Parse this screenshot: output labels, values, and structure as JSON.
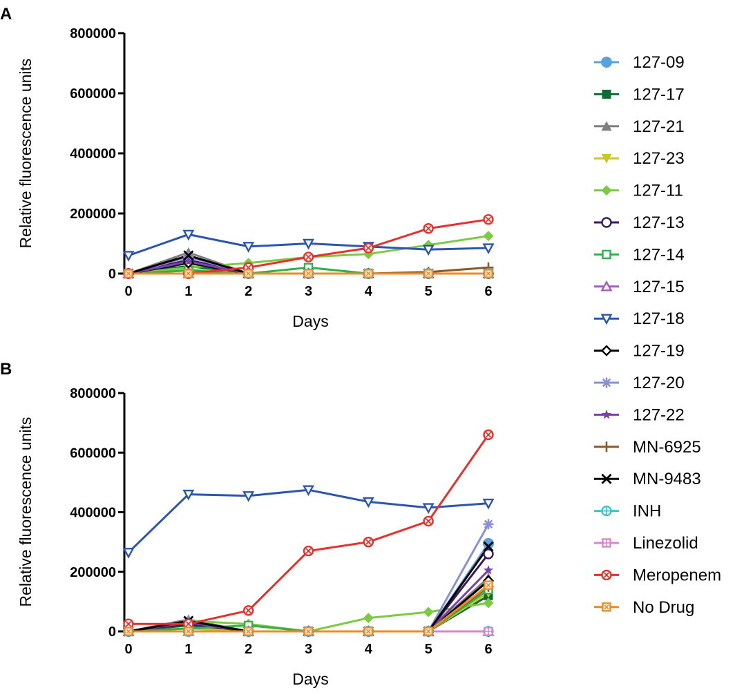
{
  "chart_data": [
    {
      "panel": "A",
      "type": "line",
      "xlabel": "Days",
      "ylabel": "Relative fluorescence units",
      "x": [
        0,
        1,
        2,
        3,
        4,
        5,
        6
      ],
      "ylim": [
        0,
        800000
      ],
      "yticks": [
        "0",
        "200000",
        "400000",
        "600000",
        "800000"
      ],
      "xticks": [
        "0",
        "1",
        "2",
        "3",
        "4",
        "5",
        "6"
      ],
      "series": [
        {
          "name": "127-09",
          "values": [
            0,
            0,
            0,
            0,
            0,
            0,
            0
          ]
        },
        {
          "name": "127-17",
          "values": [
            0,
            25000,
            0,
            0,
            0,
            0,
            0
          ]
        },
        {
          "name": "127-21",
          "values": [
            0,
            70000,
            0,
            0,
            0,
            0,
            0
          ]
        },
        {
          "name": "127-23",
          "values": [
            0,
            15000,
            0,
            0,
            0,
            0,
            0
          ]
        },
        {
          "name": "127-11",
          "values": [
            0,
            20000,
            35000,
            55000,
            65000,
            95000,
            125000
          ]
        },
        {
          "name": "127-13",
          "values": [
            0,
            45000,
            0,
            0,
            0,
            0,
            0
          ]
        },
        {
          "name": "127-14",
          "values": [
            0,
            10000,
            0,
            20000,
            0,
            0,
            0
          ]
        },
        {
          "name": "127-15",
          "values": [
            0,
            0,
            0,
            0,
            0,
            0,
            0
          ]
        },
        {
          "name": "127-18",
          "values": [
            60000,
            130000,
            90000,
            100000,
            90000,
            80000,
            85000
          ]
        },
        {
          "name": "127-19",
          "values": [
            0,
            35000,
            0,
            0,
            0,
            0,
            0
          ]
        },
        {
          "name": "127-20",
          "values": [
            0,
            55000,
            0,
            0,
            0,
            0,
            0
          ]
        },
        {
          "name": "127-22",
          "values": [
            0,
            40000,
            0,
            0,
            0,
            0,
            0
          ]
        },
        {
          "name": "MN-6925",
          "values": [
            0,
            0,
            0,
            0,
            0,
            5000,
            20000
          ]
        },
        {
          "name": "MN-9483",
          "values": [
            0,
            60000,
            0,
            0,
            0,
            0,
            0
          ]
        },
        {
          "name": "INH",
          "values": [
            0,
            0,
            0,
            0,
            0,
            0,
            0
          ]
        },
        {
          "name": "Linezolid",
          "values": [
            0,
            0,
            0,
            0,
            0,
            0,
            0
          ]
        },
        {
          "name": "Meropenem",
          "values": [
            0,
            0,
            20000,
            55000,
            85000,
            150000,
            180000
          ]
        },
        {
          "name": "No Drug",
          "values": [
            0,
            0,
            0,
            0,
            0,
            0,
            0
          ]
        }
      ]
    },
    {
      "panel": "B",
      "type": "line",
      "xlabel": "Days",
      "ylabel": "Relative fluorescence units",
      "x": [
        0,
        1,
        2,
        3,
        4,
        5,
        6
      ],
      "ylim": [
        0,
        800000
      ],
      "yticks": [
        "0",
        "200000",
        "400000",
        "600000",
        "800000"
      ],
      "xticks": [
        "0",
        "1",
        "2",
        "3",
        "4",
        "5",
        "6"
      ],
      "series": [
        {
          "name": "127-09",
          "values": [
            0,
            0,
            0,
            0,
            0,
            0,
            295000
          ]
        },
        {
          "name": "127-17",
          "values": [
            0,
            20000,
            0,
            0,
            0,
            0,
            120000
          ]
        },
        {
          "name": "127-21",
          "values": [
            0,
            40000,
            0,
            0,
            0,
            0,
            180000
          ]
        },
        {
          "name": "127-23",
          "values": [
            0,
            10000,
            0,
            0,
            0,
            0,
            130000
          ]
        },
        {
          "name": "127-11",
          "values": [
            0,
            35000,
            25000,
            0,
            45000,
            65000,
            95000
          ]
        },
        {
          "name": "127-13",
          "values": [
            0,
            25000,
            0,
            0,
            0,
            0,
            260000
          ]
        },
        {
          "name": "127-14",
          "values": [
            0,
            10000,
            20000,
            0,
            0,
            0,
            140000
          ]
        },
        {
          "name": "127-15",
          "values": [
            0,
            0,
            0,
            0,
            0,
            0,
            0
          ]
        },
        {
          "name": "127-18",
          "values": [
            265000,
            460000,
            455000,
            475000,
            435000,
            415000,
            430000
          ]
        },
        {
          "name": "127-19",
          "values": [
            0,
            30000,
            0,
            0,
            0,
            0,
            170000
          ]
        },
        {
          "name": "127-20",
          "values": [
            0,
            35000,
            0,
            0,
            0,
            0,
            360000
          ]
        },
        {
          "name": "127-22",
          "values": [
            0,
            30000,
            0,
            0,
            0,
            0,
            205000
          ]
        },
        {
          "name": "MN-6925",
          "values": [
            0,
            0,
            0,
            0,
            0,
            0,
            150000
          ]
        },
        {
          "name": "MN-9483",
          "values": [
            0,
            35000,
            0,
            0,
            0,
            0,
            285000
          ]
        },
        {
          "name": "INH",
          "values": [
            0,
            0,
            0,
            0,
            0,
            0,
            0
          ]
        },
        {
          "name": "Linezolid",
          "values": [
            0,
            0,
            0,
            0,
            0,
            0,
            0
          ]
        },
        {
          "name": "Meropenem",
          "values": [
            25000,
            25000,
            70000,
            270000,
            300000,
            370000,
            660000
          ]
        },
        {
          "name": "No Drug",
          "values": [
            0,
            0,
            0,
            0,
            0,
            0,
            155000
          ]
        }
      ]
    }
  ],
  "legend": [
    {
      "name": "127-09",
      "color": "#5aa2dc",
      "marker": "circle-filled"
    },
    {
      "name": "127-17",
      "color": "#0e6a37",
      "marker": "square-filled"
    },
    {
      "name": "127-21",
      "color": "#7f7f7f",
      "marker": "triangle-up-filled"
    },
    {
      "name": "127-23",
      "color": "#c9c82a",
      "marker": "triangle-down-filled"
    },
    {
      "name": "127-11",
      "color": "#7cc943",
      "marker": "diamond-filled"
    },
    {
      "name": "127-13",
      "color": "#3d1a5e",
      "marker": "circle-open"
    },
    {
      "name": "127-14",
      "color": "#2db34a",
      "marker": "square-open"
    },
    {
      "name": "127-15",
      "color": "#a45fbe",
      "marker": "triangle-up-open"
    },
    {
      "name": "127-18",
      "color": "#2b55b0",
      "marker": "triangle-down-open"
    },
    {
      "name": "127-19",
      "color": "#000000",
      "marker": "diamond-open"
    },
    {
      "name": "127-20",
      "color": "#8b8fd6",
      "marker": "asterisk"
    },
    {
      "name": "127-22",
      "color": "#7a3fb0",
      "marker": "star"
    },
    {
      "name": "MN-6925",
      "color": "#8b5a2b",
      "marker": "plus"
    },
    {
      "name": "MN-9483",
      "color": "#000000",
      "marker": "cross"
    },
    {
      "name": "INH",
      "color": "#3fc4c8",
      "marker": "circle-plus-open"
    },
    {
      "name": "Linezolid",
      "color": "#d986c8",
      "marker": "square-plus-open"
    },
    {
      "name": "Meropenem",
      "color": "#e8302a",
      "marker": "circle-cross-open"
    },
    {
      "name": "No Drug",
      "color": "#f08a22",
      "marker": "square-cross-open"
    }
  ]
}
